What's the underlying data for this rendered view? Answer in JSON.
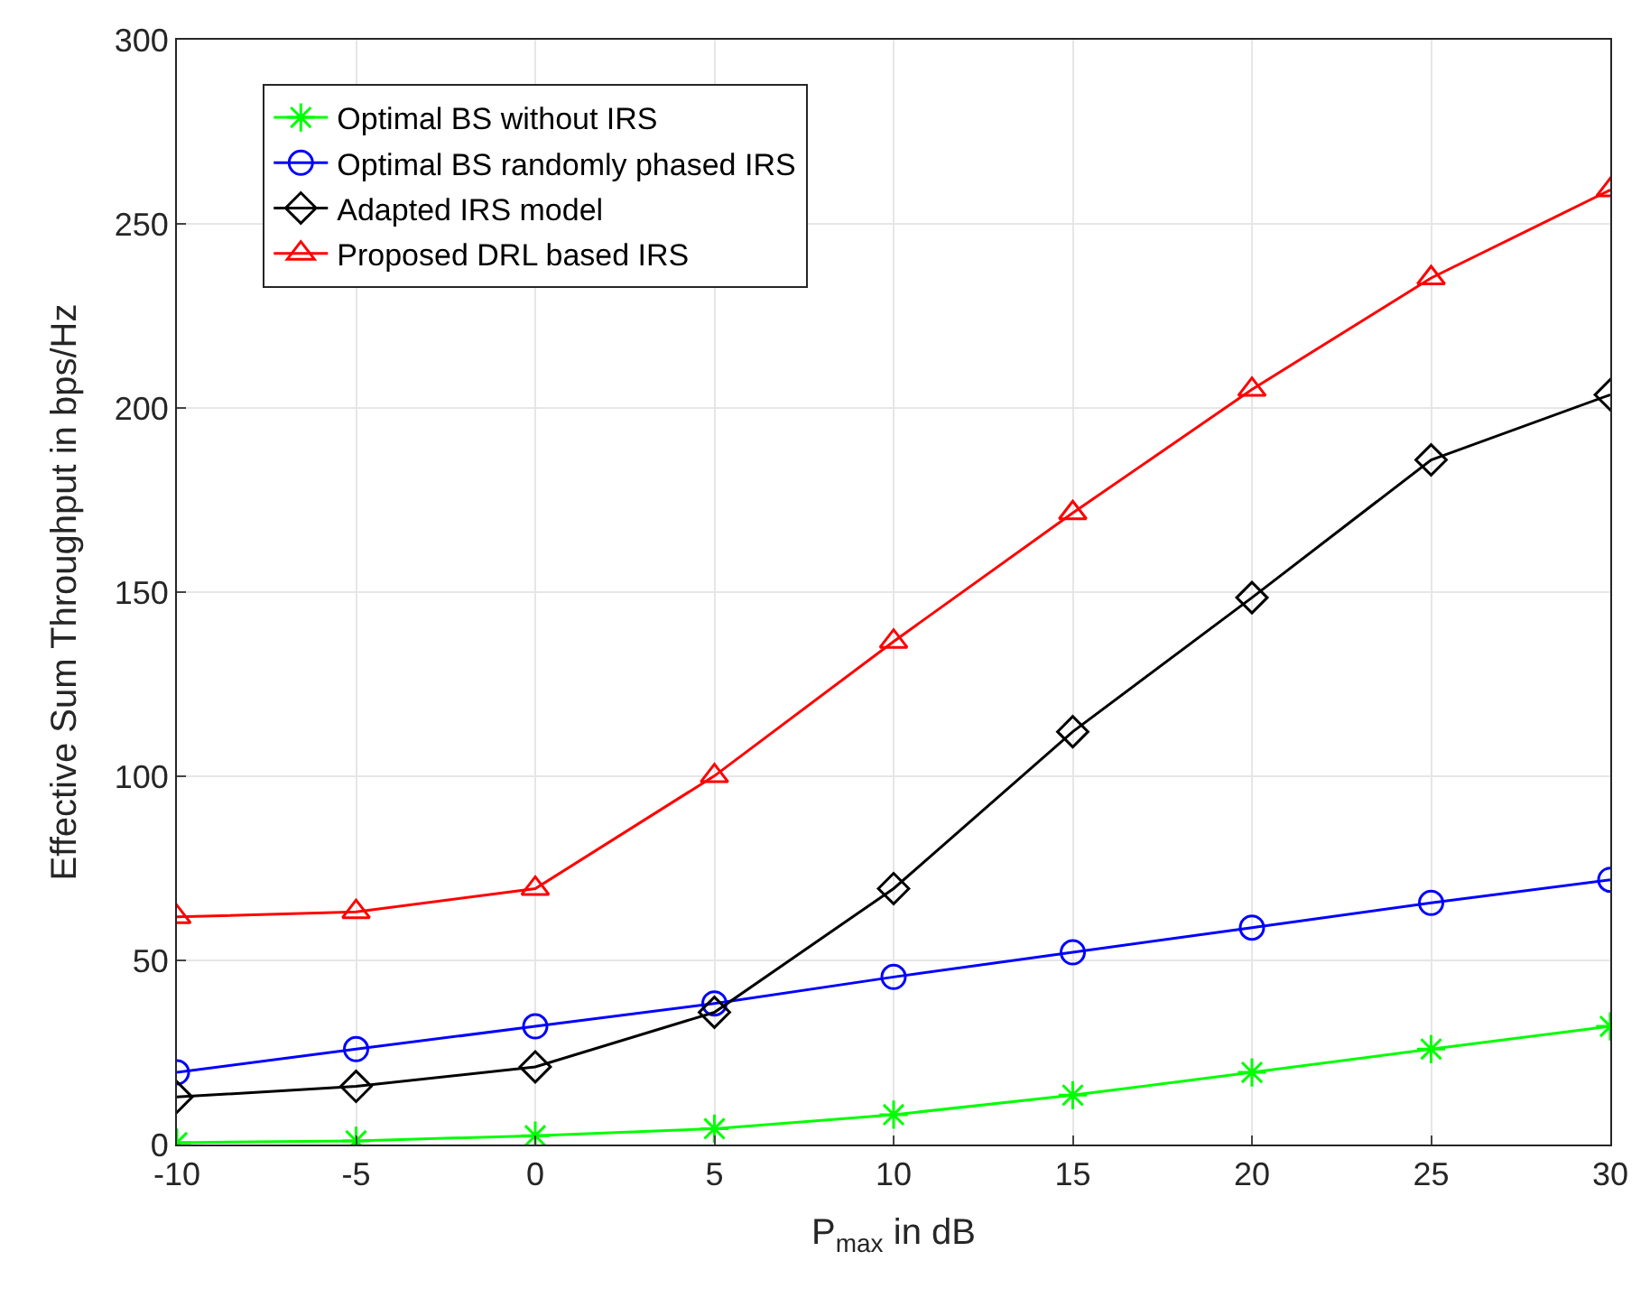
{
  "chart_data": {
    "type": "line",
    "xlabel": "P$_{max}$ in dB",
    "ylabel": "Effective Sum Throughput in bps/Hz",
    "x": [
      -10,
      -5,
      0,
      5,
      10,
      15,
      20,
      25,
      30
    ],
    "xlim": [
      -10,
      30
    ],
    "xticks": [
      -10,
      -5,
      0,
      5,
      10,
      15,
      20,
      25,
      30
    ],
    "ylim": [
      0,
      300
    ],
    "yticks": [
      0,
      50,
      100,
      150,
      200,
      250,
      300
    ],
    "grid": true,
    "legend": "top left",
    "line_style": "solid",
    "series": [
      {
        "name": "Optimal BS without IRS",
        "color": "#00ff00",
        "marker": "cross",
        "values": [
          0.5,
          1,
          2.4,
          4.3,
          8.1,
          13.4,
          19.6,
          25.9,
          32.1
        ]
      },
      {
        "name": "Optimal BS randomly phased IRS",
        "color": "#0000ff",
        "marker": "circle",
        "values": [
          19.6,
          25.9,
          32.1,
          38.3,
          45.5,
          52.2,
          58.9,
          65.6,
          71.9
        ]
      },
      {
        "name": "Adapted IRS model",
        "color": "#000000",
        "marker": "diamond",
        "values": [
          12.9,
          15.8,
          21.1,
          35.9,
          69.5,
          112.1,
          148.5,
          185.9,
          203.6
        ]
      },
      {
        "name": "Proposed DRL based IRS",
        "color": "#ff0000",
        "marker": "triangle",
        "values": [
          61.8,
          63.2,
          69.5,
          100.1,
          136.6,
          171.5,
          205,
          235.3,
          259.2
        ]
      }
    ]
  }
}
